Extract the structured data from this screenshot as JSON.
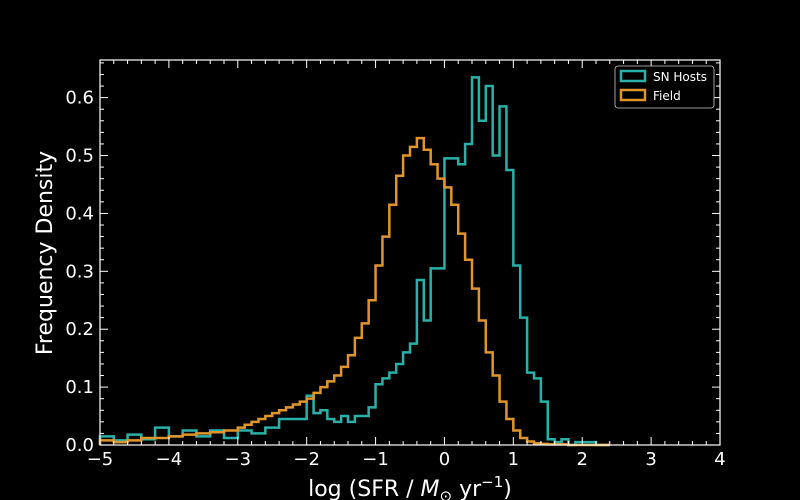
{
  "chart_data": {
    "type": "step-histogram",
    "title": "",
    "xlabel": {
      "prefix": "log (SFR / ",
      "symbol": "M",
      "subscript": "⊙",
      "mid": " yr",
      "superscript": "−1",
      "suffix": ")"
    },
    "ylabel": "Frequency Density",
    "xlim": [
      -5,
      4
    ],
    "ylim": [
      0,
      0.665
    ],
    "xticks": [
      -5,
      -4,
      -3,
      -2,
      -1,
      0,
      1,
      2,
      3,
      4
    ],
    "xtick_labels": [
      "−5",
      "−4",
      "−3",
      "−2",
      "−1",
      "0",
      "1",
      "2",
      "3",
      "4"
    ],
    "yticks": [
      0.0,
      0.1,
      0.2,
      0.3,
      0.4,
      0.5,
      0.6
    ],
    "ytick_labels": [
      "0.0",
      "0.1",
      "0.2",
      "0.3",
      "0.4",
      "0.5",
      "0.6"
    ],
    "legend_position": "top-right",
    "background": "#000000",
    "series": [
      {
        "name": "SN Hosts",
        "color": "#2ab0a8",
        "bin_edges": [
          -5.0,
          -4.8,
          -4.6,
          -4.4,
          -4.2,
          -4.0,
          -3.8,
          -3.6,
          -3.4,
          -3.2,
          -3.0,
          -2.8,
          -2.6,
          -2.4,
          -2.2,
          -2.0,
          -1.9,
          -1.8,
          -1.7,
          -1.6,
          -1.5,
          -1.4,
          -1.3,
          -1.2,
          -1.1,
          -1.0,
          -0.9,
          -0.8,
          -0.7,
          -0.6,
          -0.5,
          -0.4,
          -0.3,
          -0.2,
          -0.1,
          0.0,
          0.2,
          0.3,
          0.4,
          0.5,
          0.6,
          0.7,
          0.8,
          0.9,
          1.0,
          1.1,
          1.2,
          1.3,
          1.4,
          1.5,
          1.6,
          1.7,
          1.8,
          1.9,
          2.0,
          2.1,
          2.2,
          2.4
        ],
        "values": [
          0.015,
          0.008,
          0.018,
          0.01,
          0.03,
          0.015,
          0.025,
          0.015,
          0.025,
          0.012,
          0.025,
          0.02,
          0.03,
          0.045,
          0.045,
          0.085,
          0.055,
          0.06,
          0.045,
          0.04,
          0.05,
          0.04,
          0.05,
          0.05,
          0.065,
          0.105,
          0.115,
          0.125,
          0.14,
          0.16,
          0.175,
          0.285,
          0.215,
          0.305,
          0.305,
          0.495,
          0.485,
          0.52,
          0.635,
          0.56,
          0.62,
          0.5,
          0.585,
          0.475,
          0.31,
          0.22,
          0.125,
          0.115,
          0.075,
          0.01,
          0.005,
          0.01,
          0.0,
          0.005,
          0.005,
          0.005,
          0.0
        ]
      },
      {
        "name": "Field",
        "color": "#e0952c",
        "bin_edges": [
          -5.0,
          -4.8,
          -4.6,
          -4.4,
          -4.2,
          -4.0,
          -3.8,
          -3.6,
          -3.4,
          -3.2,
          -3.0,
          -2.9,
          -2.8,
          -2.7,
          -2.6,
          -2.5,
          -2.4,
          -2.3,
          -2.2,
          -2.1,
          -2.0,
          -1.9,
          -1.8,
          -1.7,
          -1.6,
          -1.5,
          -1.4,
          -1.3,
          -1.2,
          -1.1,
          -1.0,
          -0.9,
          -0.8,
          -0.7,
          -0.6,
          -0.5,
          -0.4,
          -0.3,
          -0.2,
          -0.1,
          0.0,
          0.1,
          0.2,
          0.3,
          0.4,
          0.5,
          0.6,
          0.7,
          0.8,
          0.9,
          1.0,
          1.1,
          1.2,
          1.3,
          1.4,
          1.5,
          1.6,
          1.8,
          2.0,
          2.4
        ],
        "values": [
          0.008,
          0.005,
          0.008,
          0.012,
          0.012,
          0.015,
          0.018,
          0.02,
          0.022,
          0.025,
          0.03,
          0.035,
          0.04,
          0.045,
          0.05,
          0.055,
          0.06,
          0.065,
          0.07,
          0.075,
          0.08,
          0.09,
          0.1,
          0.11,
          0.12,
          0.135,
          0.155,
          0.185,
          0.21,
          0.25,
          0.31,
          0.36,
          0.415,
          0.465,
          0.5,
          0.515,
          0.53,
          0.51,
          0.485,
          0.46,
          0.445,
          0.415,
          0.365,
          0.32,
          0.27,
          0.215,
          0.16,
          0.12,
          0.075,
          0.045,
          0.025,
          0.012,
          0.006,
          0.003,
          0.002,
          0.001,
          0.001,
          0.0,
          0.0
        ]
      }
    ]
  }
}
